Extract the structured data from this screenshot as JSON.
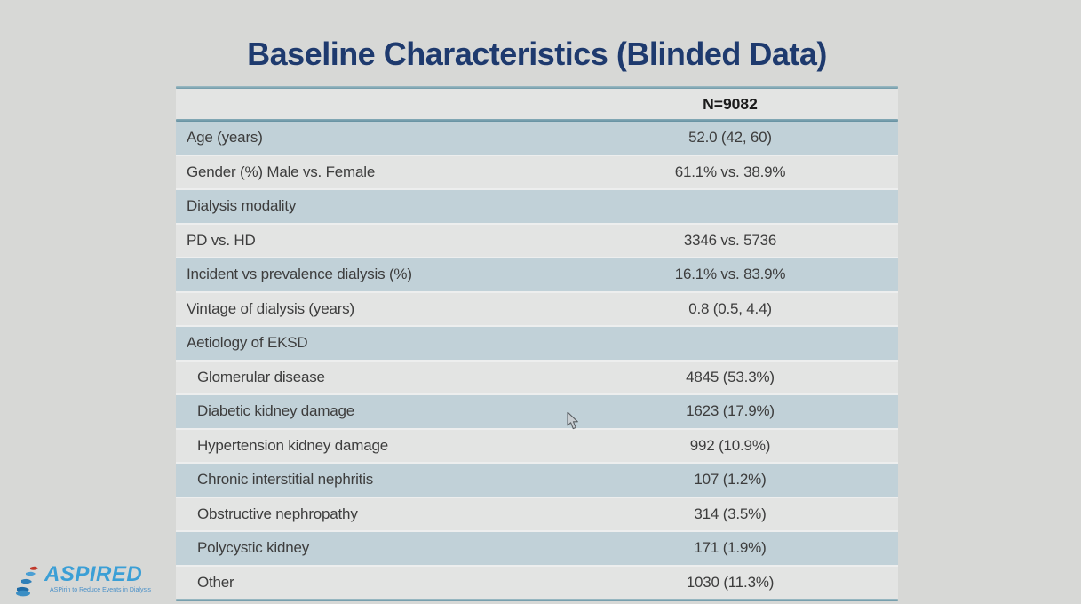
{
  "slide": {
    "title": "Baseline Characteristics (Blinded Data)",
    "table": {
      "n_label": "N=9082",
      "rows": [
        {
          "label": "Age (years)",
          "value": "52.0 (42, 60)",
          "indent": false
        },
        {
          "label": "Gender (%) Male vs. Female",
          "value": "61.1% vs. 38.9%",
          "indent": false
        },
        {
          "label": "Dialysis modality",
          "value": "",
          "indent": false
        },
        {
          "label": "PD vs. HD",
          "value": "3346 vs. 5736",
          "indent": false
        },
        {
          "label": "Incident vs prevalence dialysis (%)",
          "value": "16.1% vs. 83.9%",
          "indent": false
        },
        {
          "label": "Vintage of dialysis (years)",
          "value": "0.8 (0.5, 4.4)",
          "indent": false
        },
        {
          "label": "Aetiology of EKSD",
          "value": "",
          "indent": false
        },
        {
          "label": "Glomerular disease",
          "value": "4845 (53.3%)",
          "indent": true
        },
        {
          "label": "Diabetic kidney damage",
          "value": "1623 (17.9%)",
          "indent": true
        },
        {
          "label": "Hypertension kidney damage",
          "value": "992 (10.9%)",
          "indent": true
        },
        {
          "label": "Chronic interstitial nephritis",
          "value": "107 (1.2%)",
          "indent": true
        },
        {
          "label": "Obstructive nephropathy",
          "value": "314 (3.5%)",
          "indent": true
        },
        {
          "label": "Polycystic kidney",
          "value": "171 (1.9%)",
          "indent": true
        },
        {
          "label": "Other",
          "value": "1030 (11.3%)",
          "indent": true
        }
      ]
    },
    "logo": {
      "name": "ASPIRED",
      "tagline": "ASPirin to Reduce Events in Dialysis"
    },
    "colors": {
      "background": "#d7d8d6",
      "title_navy": "#1e3a6e",
      "row_blue": "#c1d1d8",
      "row_gray": "#e3e4e3",
      "divider_teal": "#6f99a8",
      "text": "#3d3d3d",
      "logo_blue": "#3b9fd6"
    }
  }
}
